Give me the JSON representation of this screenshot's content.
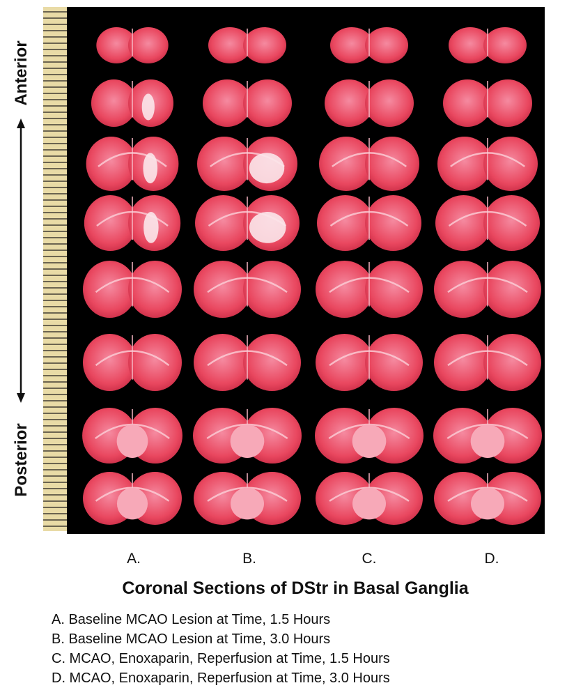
{
  "axis_labels": {
    "top": "Anterior",
    "bottom": "Posterior"
  },
  "columns": [
    "A.",
    "B.",
    "C.",
    "D."
  ],
  "title": "Coronal Sections of DStr in Basal Ganglia",
  "legend": [
    "A. Baseline MCAO Lesion at Time, 1.5 Hours",
    "B. Baseline MCAO Lesion at Time, 3.0 Hours",
    "C. MCAO, Enoxaparin, Reperfusion at Time, 1.5 Hours",
    "D. MCAO, Enoxaparin, Reperfusion at Time, 3.0 Hours"
  ]
}
